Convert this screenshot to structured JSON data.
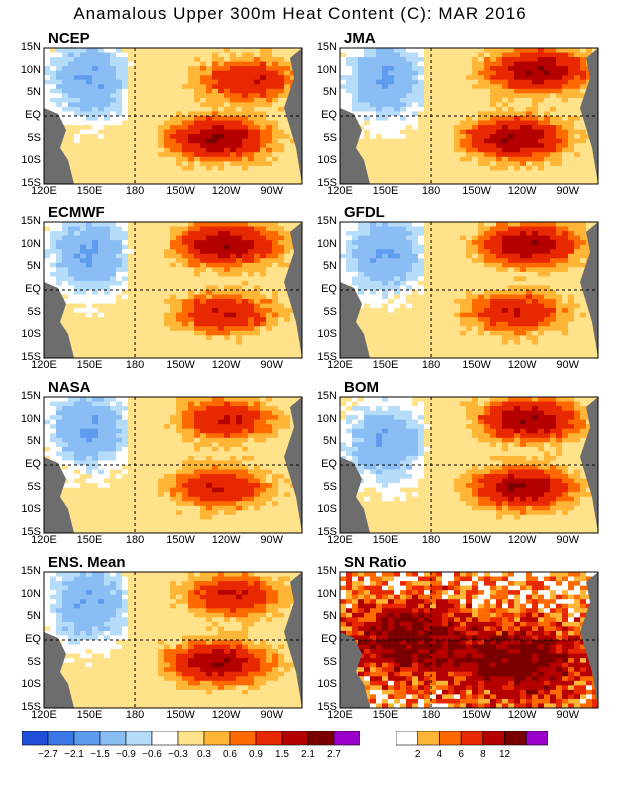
{
  "title": "Anamalous Upper 300m Heat Content (C): MAR 2016",
  "axes": {
    "x_ticks": [
      "120E",
      "150E",
      "180",
      "150W",
      "120W",
      "90W"
    ],
    "y_ticks": [
      "15N",
      "10N",
      "5N",
      "EQ",
      "5S",
      "10S",
      "15S"
    ]
  },
  "chart_data": [
    {
      "type": "heatmap",
      "title": "NCEP",
      "xlim": [
        "120E",
        "70W"
      ],
      "ylim": [
        "15S",
        "15N"
      ],
      "variable": "heat content anomaly (C)",
      "warm_centers": [
        {
          "lon": "125W",
          "lat": "5S",
          "value": 2.1
        },
        {
          "lon": "105W",
          "lat": "8N",
          "value": 1.5
        }
      ],
      "cold_centers": [
        {
          "lon": "150E",
          "lat": "8N",
          "value": -1.5
        }
      ]
    },
    {
      "type": "heatmap",
      "title": "JMA",
      "xlim": [
        "120E",
        "70W"
      ],
      "ylim": [
        "15S",
        "15N"
      ],
      "variable": "heat content anomaly (C)",
      "warm_centers": [
        {
          "lon": "125W",
          "lat": "5S",
          "value": 2.1
        },
        {
          "lon": "110W",
          "lat": "10N",
          "value": 2.1
        }
      ],
      "cold_centers": [
        {
          "lon": "150E",
          "lat": "8N",
          "value": -1.5
        }
      ]
    },
    {
      "type": "heatmap",
      "title": "ECMWF",
      "xlim": [
        "120E",
        "70W"
      ],
      "ylim": [
        "15S",
        "15N"
      ],
      "variable": "heat content anomaly (C)",
      "warm_centers": [
        {
          "lon": "120W",
          "lat": "10N",
          "value": 2.1
        },
        {
          "lon": "120W",
          "lat": "5S",
          "value": 1.5
        }
      ],
      "cold_centers": [
        {
          "lon": "150E",
          "lat": "8N",
          "value": -1.5
        }
      ]
    },
    {
      "type": "heatmap",
      "title": "GFDL",
      "xlim": [
        "120E",
        "70W"
      ],
      "ylim": [
        "15S",
        "15N"
      ],
      "variable": "heat content anomaly (C)",
      "warm_centers": [
        {
          "lon": "115W",
          "lat": "10N",
          "value": 2.1
        },
        {
          "lon": "125W",
          "lat": "5S",
          "value": 1.5
        }
      ],
      "cold_centers": [
        {
          "lon": "150E",
          "lat": "8N",
          "value": -1.5
        }
      ]
    },
    {
      "type": "heatmap",
      "title": "NASA",
      "xlim": [
        "120E",
        "70W"
      ],
      "ylim": [
        "15S",
        "15N"
      ],
      "variable": "heat content anomaly (C)",
      "warm_centers": [
        {
          "lon": "120W",
          "lat": "10N",
          "value": 1.5
        },
        {
          "lon": "125W",
          "lat": "5S",
          "value": 1.5
        }
      ],
      "cold_centers": [
        {
          "lon": "150E",
          "lat": "8N",
          "value": -1.5
        }
      ]
    },
    {
      "type": "heatmap",
      "title": "BOM",
      "xlim": [
        "120E",
        "70W"
      ],
      "ylim": [
        "15S",
        "15N"
      ],
      "variable": "heat content anomaly (C)",
      "warm_centers": [
        {
          "lon": "115W",
          "lat": "10N",
          "value": 2.1
        },
        {
          "lon": "120W",
          "lat": "5S",
          "value": 2.1
        }
      ],
      "cold_centers": [
        {
          "lon": "150E",
          "lat": "5N",
          "value": -1.5
        }
      ]
    },
    {
      "type": "heatmap",
      "title": "ENS. Mean",
      "xlim": [
        "120E",
        "70W"
      ],
      "ylim": [
        "15S",
        "15N"
      ],
      "variable": "heat content anomaly (C)",
      "warm_centers": [
        {
          "lon": "125W",
          "lat": "5S",
          "value": 2.1
        },
        {
          "lon": "115W",
          "lat": "10N",
          "value": 1.5
        }
      ],
      "cold_centers": [
        {
          "lon": "150E",
          "lat": "8N",
          "value": -1.5
        }
      ]
    },
    {
      "type": "heatmap",
      "title": "SN Ratio",
      "xlim": [
        "120E",
        "70W"
      ],
      "ylim": [
        "15S",
        "15N"
      ],
      "variable": "signal-to-noise ratio",
      "high_areas": [
        {
          "lon": "165E",
          "lat": "0",
          "value": 12
        },
        {
          "lon": "120W",
          "lat": "5S",
          "value": 12
        }
      ]
    }
  ],
  "colorbar_anomaly": {
    "colors": [
      "#1f4fd8",
      "#3b78e6",
      "#5f9cf0",
      "#8bbdf5",
      "#b5dcf9",
      "#ffffff",
      "#ffe28a",
      "#ffb536",
      "#ff6a00",
      "#e82800",
      "#b50000",
      "#7a0000",
      "#9900cc"
    ],
    "labels": [
      "−2.7",
      "−2.1",
      "−1.5",
      "−0.9",
      "−0.6",
      "−0.3",
      "0.3",
      "0.6",
      "0.9",
      "1.5",
      "2.1",
      "2.7"
    ]
  },
  "colorbar_sn": {
    "colors": [
      "#ffffff",
      "#ffb536",
      "#ff6a00",
      "#e82800",
      "#b50000",
      "#7a0000",
      "#9900cc"
    ],
    "labels": [
      "2",
      "4",
      "6",
      "8",
      "12"
    ]
  }
}
